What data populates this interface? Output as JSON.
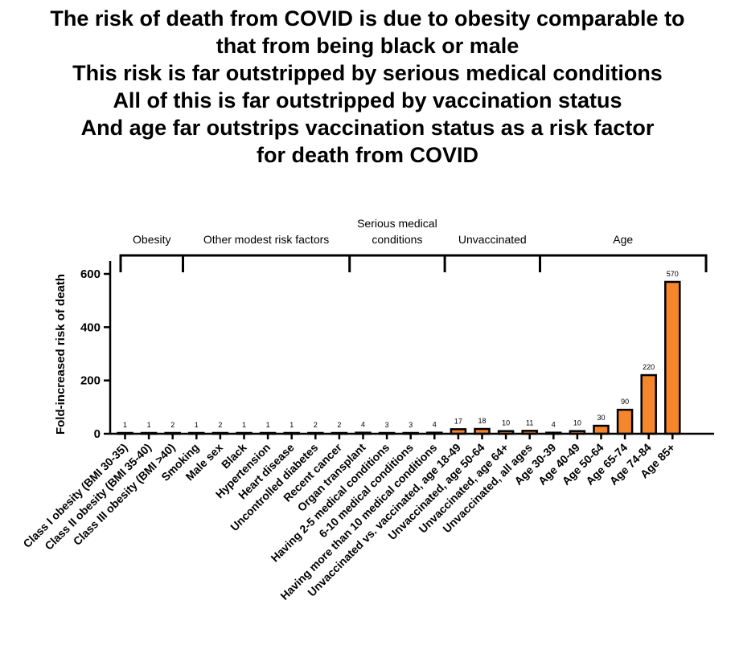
{
  "title_lines": [
    "The risk of death from COVID is due to obesity comparable to",
    "that from being black or male",
    "This risk is far outstripped by serious medical conditions",
    "All of this is far outstripped by vaccination status",
    "And age far outstrips vaccination status as a risk factor",
    "for death from COVID"
  ],
  "colors": {
    "bar_fill": "#F5862B",
    "bar_stroke": "#000000",
    "axis": "#000000"
  },
  "chart_data": {
    "type": "bar",
    "ylabel": "Fold-increased risk of death",
    "xlabel": "",
    "ylim": [
      0,
      650
    ],
    "yticks": [
      0,
      200,
      400,
      600
    ],
    "categories": [
      "Class I obesity (BMI 30-35)",
      "Class II obesity (BMI 35-40)",
      "Class III obesity (BMI >40)",
      "Smoking",
      "Male sex",
      "Black",
      "Hypertension",
      "Heart disease",
      "Uncontrolled diabetes",
      "Recent cancer",
      "Organ transplant",
      "Having 2-5 medical conditions",
      "6-10 medical conditions",
      "Having more than 10 medical conditions",
      "Unvaccinated vs. vaccinated, age 18-49",
      "Unvaccinated, age 50-64",
      "Unvaccinated, age 64+",
      "Unvaccinated, all ages",
      "Age 30-39",
      "Age 40-49",
      "Age 50-64",
      "Age 65-74",
      "Age 74-84",
      "Age 85+"
    ],
    "values": [
      1,
      1,
      2,
      1,
      2,
      1,
      1,
      1,
      2,
      2,
      4,
      3,
      3,
      4,
      17,
      18,
      10,
      11,
      4,
      10,
      30,
      90,
      220,
      570
    ],
    "value_labels": [
      "1",
      "1",
      "2",
      "1",
      "2",
      "1",
      "1",
      "1",
      "2",
      "2",
      "4",
      "3",
      "3",
      "4",
      "17",
      "18",
      "10",
      "11",
      "4",
      "10",
      "30",
      "90",
      "220",
      "570"
    ],
    "groups": [
      {
        "label": "Obesity",
        "start": 0,
        "end": 2
      },
      {
        "label": "Other modest risk factors",
        "start": 3,
        "end": 9
      },
      {
        "label": "Serious medical\nconditions",
        "start": 10,
        "end": 13
      },
      {
        "label": "Unvaccinated",
        "start": 14,
        "end": 17
      },
      {
        "label": "Age",
        "start": 18,
        "end": 23
      }
    ]
  }
}
